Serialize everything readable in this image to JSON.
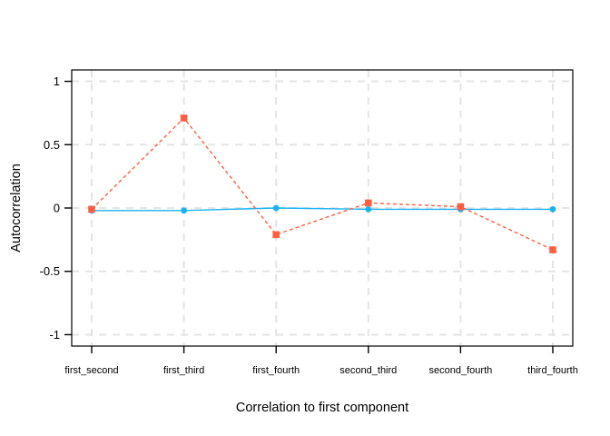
{
  "figure": {
    "background": "#ffffff",
    "panel_border_color": "#000000",
    "grid_color": "#e4e4e4",
    "tick_color": "#000000",
    "text_color": "#000000"
  },
  "chart_data": {
    "type": "line",
    "title": "",
    "xlabel": "Correlation to first component",
    "ylabel": "Autocorrelation",
    "categories": [
      "first_second",
      "first_third",
      "first_fourth",
      "second_third",
      "second_fourth",
      "third_fourth"
    ],
    "series": [
      {
        "name": "cyan-solid-circles",
        "color": "#1ab2f2",
        "line_style": "solid",
        "marker": "circle",
        "values": [
          -0.02,
          -0.02,
          0.0,
          -0.01,
          -0.01,
          -0.01
        ]
      },
      {
        "name": "red-dashed-squares",
        "color": "#ff5e42",
        "line_style": "dashed",
        "marker": "square",
        "values": [
          -0.01,
          0.71,
          -0.21,
          0.04,
          0.01,
          -0.33
        ]
      }
    ],
    "y_ticks": [
      -1,
      -0.5,
      0,
      0.5,
      1
    ],
    "y_tick_labels": [
      "-1",
      "-0.5",
      "0",
      "0.5",
      "1"
    ],
    "ylim": [
      -1.09,
      1.09
    ],
    "grid": true,
    "grid_style": "dashed",
    "legend": "none"
  }
}
